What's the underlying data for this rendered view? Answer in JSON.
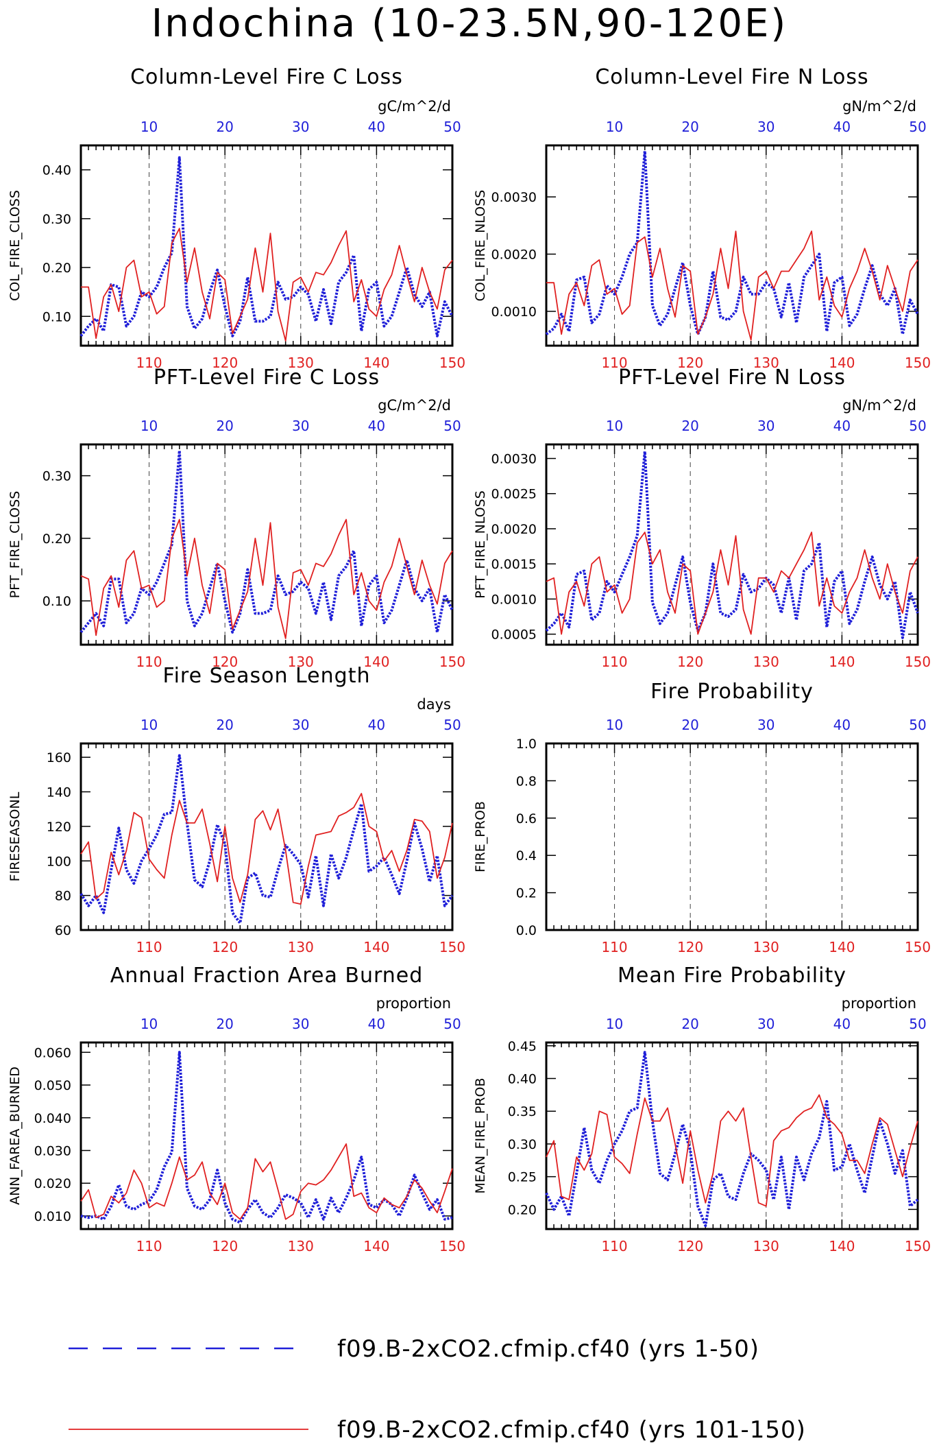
{
  "figure": {
    "title": "Indochina (10-23.5N,90-120E)"
  },
  "legend": {
    "entries": [
      {
        "label": "f09.B-2xCO2.cfmip.cf40 (yrs 1-50)",
        "color": "#1f1fd8",
        "style": "dashed"
      },
      {
        "label": "f09.B-2xCO2.cfmip.cf40 (yrs 101-150)",
        "color": "#e02020",
        "style": "solid"
      }
    ]
  },
  "colors": {
    "blue": "#1f1fd8",
    "red": "#e02020",
    "axis": "#000000"
  },
  "chart_data": [
    {
      "type": "line",
      "title": "Column-Level Fire C Loss",
      "units": "gC/m^2/d",
      "ylabel": "COL_FIRE_CLOSS",
      "ylim": [
        0.04,
        0.45
      ],
      "yticks": [
        "0.10",
        "0.20",
        "0.30",
        "0.40"
      ],
      "top_xticks": [
        "10",
        "20",
        "30",
        "40",
        "50"
      ],
      "bottom_xticks": [
        "110",
        "120",
        "130",
        "140",
        "150"
      ],
      "series": [
        {
          "name": "f09.B-2xCO2.cfmip.cf40 (yrs 1-50)",
          "x_start": 1,
          "values": [
            0.06,
            0.08,
            0.095,
            0.07,
            0.165,
            0.16,
            0.08,
            0.1,
            0.15,
            0.14,
            0.16,
            0.2,
            0.23,
            0.425,
            0.12,
            0.075,
            0.095,
            0.15,
            0.195,
            0.12,
            0.06,
            0.09,
            0.18,
            0.09,
            0.09,
            0.1,
            0.17,
            0.135,
            0.14,
            0.16,
            0.145,
            0.09,
            0.155,
            0.085,
            0.17,
            0.19,
            0.225,
            0.07,
            0.155,
            0.17,
            0.08,
            0.1,
            0.15,
            0.2,
            0.145,
            0.12,
            0.15,
            0.06,
            0.13,
            0.1
          ]
        },
        {
          "name": "f09.B-2xCO2.cfmip.cf40 (yrs 101-150)",
          "x_start": 101,
          "values": [
            0.16,
            0.16,
            0.055,
            0.14,
            0.165,
            0.11,
            0.2,
            0.215,
            0.14,
            0.15,
            0.105,
            0.12,
            0.25,
            0.28,
            0.17,
            0.24,
            0.15,
            0.095,
            0.19,
            0.175,
            0.065,
            0.1,
            0.135,
            0.24,
            0.15,
            0.27,
            0.11,
            0.05,
            0.17,
            0.18,
            0.15,
            0.19,
            0.185,
            0.21,
            0.245,
            0.275,
            0.13,
            0.175,
            0.115,
            0.1,
            0.155,
            0.185,
            0.245,
            0.185,
            0.13,
            0.2,
            0.15,
            0.115,
            0.195,
            0.215
          ]
        }
      ]
    },
    {
      "type": "line",
      "title": "Column-Level Fire N Loss",
      "units": "gN/m^2/d",
      "ylabel": "COL_FIRE_NLOSS",
      "ylim": [
        0.0004,
        0.0039
      ],
      "yticks": [
        "0.0010",
        "0.0020",
        "0.0030"
      ],
      "top_xticks": [
        "10",
        "20",
        "30",
        "40",
        "50"
      ],
      "bottom_xticks": [
        "110",
        "120",
        "130",
        "140",
        "150"
      ],
      "series": [
        {
          "name": "f09.B-2xCO2.cfmip.cf40 (yrs 1-50)",
          "x_start": 1,
          "values": [
            0.0006,
            0.0007,
            0.00095,
            0.00065,
            0.00155,
            0.0016,
            0.0008,
            0.00095,
            0.00145,
            0.0013,
            0.0016,
            0.002,
            0.0022,
            0.0038,
            0.0011,
            0.00075,
            0.00095,
            0.0014,
            0.00185,
            0.0011,
            0.0006,
            0.0009,
            0.0017,
            0.0009,
            0.00085,
            0.001,
            0.0016,
            0.0013,
            0.0013,
            0.0015,
            0.0014,
            0.0009,
            0.0015,
            0.0008,
            0.0016,
            0.0018,
            0.002,
            0.00065,
            0.0015,
            0.0016,
            0.00075,
            0.00095,
            0.0014,
            0.0018,
            0.0013,
            0.0011,
            0.0014,
            0.0006,
            0.0012,
            0.00095
          ]
        },
        {
          "name": "f09.B-2xCO2.cfmip.cf40 (yrs 101-150)",
          "x_start": 101,
          "values": [
            0.0015,
            0.0015,
            0.0006,
            0.0013,
            0.0015,
            0.0011,
            0.0018,
            0.0019,
            0.0013,
            0.0014,
            0.00095,
            0.0011,
            0.0022,
            0.0023,
            0.0016,
            0.0021,
            0.0014,
            0.0009,
            0.0018,
            0.0017,
            0.0006,
            0.0009,
            0.0013,
            0.0021,
            0.0014,
            0.0024,
            0.001,
            0.0005,
            0.0016,
            0.0017,
            0.0014,
            0.0017,
            0.0017,
            0.0019,
            0.0021,
            0.0024,
            0.0012,
            0.0016,
            0.0011,
            0.0009,
            0.0014,
            0.0017,
            0.0021,
            0.0017,
            0.0012,
            0.0018,
            0.0014,
            0.001,
            0.0017,
            0.0019
          ]
        }
      ]
    },
    {
      "type": "line",
      "title": "PFT-Level Fire C Loss",
      "units": "gC/m^2/d",
      "ylabel": "PFT_FIRE_CLOSS",
      "ylim": [
        0.03,
        0.35
      ],
      "yticks": [
        "0.10",
        "0.20",
        "0.30"
      ],
      "top_xticks": [
        "10",
        "20",
        "30",
        "40",
        "50"
      ],
      "bottom_xticks": [
        "110",
        "120",
        "130",
        "140",
        "150"
      ],
      "series": [
        {
          "name": "f09.B-2xCO2.cfmip.cf40 (yrs 1-50)",
          "x_start": 1,
          "values": [
            0.05,
            0.065,
            0.08,
            0.06,
            0.135,
            0.135,
            0.065,
            0.08,
            0.12,
            0.11,
            0.13,
            0.16,
            0.19,
            0.34,
            0.1,
            0.06,
            0.08,
            0.12,
            0.16,
            0.1,
            0.05,
            0.08,
            0.15,
            0.08,
            0.08,
            0.085,
            0.14,
            0.11,
            0.115,
            0.13,
            0.12,
            0.08,
            0.13,
            0.07,
            0.14,
            0.155,
            0.18,
            0.06,
            0.125,
            0.14,
            0.065,
            0.085,
            0.125,
            0.165,
            0.12,
            0.1,
            0.12,
            0.05,
            0.11,
            0.085
          ]
        },
        {
          "name": "f09.B-2xCO2.cfmip.cf40 (yrs 101-150)",
          "x_start": 101,
          "values": [
            0.14,
            0.135,
            0.045,
            0.12,
            0.14,
            0.09,
            0.165,
            0.18,
            0.12,
            0.125,
            0.09,
            0.1,
            0.2,
            0.23,
            0.14,
            0.2,
            0.125,
            0.08,
            0.16,
            0.15,
            0.055,
            0.085,
            0.115,
            0.2,
            0.125,
            0.225,
            0.09,
            0.04,
            0.145,
            0.15,
            0.125,
            0.16,
            0.155,
            0.175,
            0.205,
            0.23,
            0.11,
            0.145,
            0.1,
            0.085,
            0.13,
            0.155,
            0.2,
            0.155,
            0.11,
            0.165,
            0.125,
            0.095,
            0.16,
            0.18
          ]
        }
      ]
    },
    {
      "type": "line",
      "title": "PFT-Level Fire N Loss",
      "units": "gN/m^2/d",
      "ylabel": "PFT_FIRE_NLOSS",
      "ylim": [
        0.00035,
        0.0032
      ],
      "yticks": [
        "0.0005",
        "0.0010",
        "0.0015",
        "0.0020",
        "0.0025",
        "0.0030"
      ],
      "top_xticks": [
        "10",
        "20",
        "30",
        "40",
        "50"
      ],
      "bottom_xticks": [
        "110",
        "120",
        "130",
        "140",
        "150"
      ],
      "series": [
        {
          "name": "f09.B-2xCO2.cfmip.cf40 (yrs 1-50)",
          "x_start": 1,
          "values": [
            0.00055,
            0.00065,
            0.0008,
            0.0006,
            0.00135,
            0.0014,
            0.0007,
            0.0008,
            0.00125,
            0.0011,
            0.00135,
            0.0016,
            0.0019,
            0.0031,
            0.00095,
            0.00065,
            0.0008,
            0.0012,
            0.0016,
            0.00095,
            0.00055,
            0.0008,
            0.0015,
            0.0008,
            0.00075,
            0.00085,
            0.00135,
            0.0011,
            0.00115,
            0.0013,
            0.0012,
            0.0008,
            0.0013,
            0.0007,
            0.0014,
            0.0015,
            0.0018,
            0.0006,
            0.00125,
            0.0014,
            0.00065,
            0.00085,
            0.00125,
            0.0016,
            0.0012,
            0.001,
            0.00125,
            0.00045,
            0.0011,
            0.0008
          ]
        },
        {
          "name": "f09.B-2xCO2.cfmip.cf40 (yrs 101-150)",
          "x_start": 101,
          "values": [
            0.00125,
            0.0013,
            0.0005,
            0.0011,
            0.00125,
            0.0009,
            0.0015,
            0.0016,
            0.0011,
            0.0012,
            0.0008,
            0.001,
            0.0018,
            0.00195,
            0.0015,
            0.0017,
            0.0011,
            0.0008,
            0.0015,
            0.0014,
            0.0005,
            0.0008,
            0.0011,
            0.0017,
            0.0012,
            0.0019,
            0.00085,
            0.0005,
            0.0013,
            0.0013,
            0.0011,
            0.0014,
            0.0013,
            0.0015,
            0.0017,
            0.00195,
            0.0009,
            0.0013,
            0.0009,
            0.0008,
            0.0011,
            0.0013,
            0.0017,
            0.0013,
            0.001,
            0.0015,
            0.0011,
            0.0008,
            0.0014,
            0.0016
          ]
        }
      ]
    },
    {
      "type": "line",
      "title": "Fire Season Length",
      "units": "days",
      "ylabel": "FIRESEASONL",
      "ylim": [
        60,
        168
      ],
      "yticks": [
        "60",
        "80",
        "100",
        "120",
        "140",
        "160"
      ],
      "top_xticks": [
        "10",
        "20",
        "30",
        "40",
        "50"
      ],
      "bottom_xticks": [
        "110",
        "120",
        "130",
        "140",
        "150"
      ],
      "series": [
        {
          "name": "f09.B-2xCO2.cfmip.cf40 (yrs 1-50)",
          "x_start": 1,
          "values": [
            81,
            74,
            80,
            70,
            95,
            119,
            95,
            87,
            100,
            107,
            115,
            127,
            128,
            161,
            122,
            89,
            85,
            100,
            121,
            110,
            70,
            64,
            90,
            93,
            80,
            79,
            95,
            109,
            104,
            98,
            79,
            103,
            74,
            104,
            90,
            102,
            118,
            133,
            94,
            97,
            102,
            92,
            81,
            100,
            122,
            107,
            88,
            103,
            74,
            80
          ]
        },
        {
          "name": "f09.B-2xCO2.cfmip.cf40 (yrs 101-150)",
          "x_start": 101,
          "values": [
            104,
            111,
            78,
            82,
            105,
            92,
            106,
            128,
            125,
            101,
            95,
            90,
            115,
            135,
            122,
            122,
            130,
            110,
            88,
            120,
            90,
            76,
            92,
            124,
            129,
            118,
            130,
            106,
            76,
            75,
            97,
            115,
            116,
            117,
            126,
            128,
            131,
            139,
            120,
            117,
            100,
            106,
            94,
            106,
            124,
            123,
            117,
            90,
            102,
            122
          ]
        }
      ]
    },
    {
      "type": "line",
      "title": "Fire Probability",
      "units": "",
      "ylabel": "FIRE_PROB",
      "ylim": [
        0,
        1
      ],
      "yticks": [
        "0.0",
        "0.2",
        "0.4",
        "0.6",
        "0.8",
        "1.0"
      ],
      "top_xticks": [
        "10",
        "20",
        "30",
        "40",
        "50"
      ],
      "bottom_xticks": [
        "110",
        "120",
        "130",
        "140",
        "150"
      ],
      "series": []
    },
    {
      "type": "line",
      "title": "Annual Fraction Area Burned",
      "units": "proportion",
      "ylabel": "ANN_FAREA_BURNED",
      "ylim": [
        0.006,
        0.063
      ],
      "yticks": [
        "0.010",
        "0.020",
        "0.030",
        "0.040",
        "0.050",
        "0.060"
      ],
      "top_xticks": [
        "10",
        "20",
        "30",
        "40",
        "50"
      ],
      "bottom_xticks": [
        "110",
        "120",
        "130",
        "140",
        "150"
      ],
      "series": [
        {
          "name": "f09.B-2xCO2.cfmip.cf40 (yrs 1-50)",
          "x_start": 1,
          "values": [
            0.01,
            0.0095,
            0.01,
            0.009,
            0.013,
            0.0195,
            0.013,
            0.012,
            0.0135,
            0.0145,
            0.018,
            0.025,
            0.0295,
            0.06,
            0.0185,
            0.013,
            0.012,
            0.015,
            0.024,
            0.014,
            0.009,
            0.008,
            0.012,
            0.015,
            0.011,
            0.0095,
            0.0125,
            0.0165,
            0.0155,
            0.014,
            0.0095,
            0.015,
            0.009,
            0.0155,
            0.011,
            0.0155,
            0.021,
            0.028,
            0.0135,
            0.0125,
            0.015,
            0.0135,
            0.01,
            0.0155,
            0.0225,
            0.017,
            0.012,
            0.015,
            0.009,
            0.0095
          ]
        },
        {
          "name": "f09.B-2xCO2.cfmip.cf40 (yrs 101-150)",
          "x_start": 101,
          "values": [
            0.0145,
            0.018,
            0.0095,
            0.0105,
            0.016,
            0.014,
            0.017,
            0.024,
            0.02,
            0.0125,
            0.014,
            0.013,
            0.02,
            0.028,
            0.021,
            0.0225,
            0.0265,
            0.017,
            0.0135,
            0.02,
            0.011,
            0.009,
            0.0125,
            0.0275,
            0.0235,
            0.0265,
            0.018,
            0.009,
            0.0105,
            0.0175,
            0.02,
            0.0195,
            0.021,
            0.024,
            0.028,
            0.032,
            0.016,
            0.017,
            0.0125,
            0.011,
            0.0155,
            0.0135,
            0.0125,
            0.016,
            0.021,
            0.0185,
            0.0145,
            0.011,
            0.0175,
            0.0245
          ]
        }
      ]
    },
    {
      "type": "line",
      "title": "Mean Fire Probability",
      "units": "proportion",
      "ylabel": "MEAN_FIRE_PROB",
      "ylim": [
        0.17,
        0.455
      ],
      "yticks": [
        "0.20",
        "0.25",
        "0.30",
        "0.35",
        "0.40",
        "0.45"
      ],
      "top_xticks": [
        "10",
        "20",
        "30",
        "40",
        "50"
      ],
      "bottom_xticks": [
        "110",
        "120",
        "130",
        "140",
        "150"
      ],
      "series": [
        {
          "name": "f09.B-2xCO2.cfmip.cf40 (yrs 1-50)",
          "x_start": 1,
          "values": [
            0.225,
            0.2,
            0.22,
            0.19,
            0.255,
            0.325,
            0.26,
            0.24,
            0.275,
            0.3,
            0.32,
            0.35,
            0.355,
            0.44,
            0.335,
            0.255,
            0.245,
            0.285,
            0.33,
            0.29,
            0.205,
            0.175,
            0.245,
            0.255,
            0.22,
            0.215,
            0.255,
            0.285,
            0.275,
            0.26,
            0.215,
            0.28,
            0.2,
            0.28,
            0.245,
            0.285,
            0.31,
            0.365,
            0.26,
            0.265,
            0.3,
            0.26,
            0.225,
            0.28,
            0.335,
            0.3,
            0.255,
            0.29,
            0.205,
            0.215
          ]
        },
        {
          "name": "f09.B-2xCO2.cfmip.cf40 (yrs 101-150)",
          "x_start": 101,
          "values": [
            0.28,
            0.305,
            0.22,
            0.215,
            0.28,
            0.26,
            0.285,
            0.35,
            0.345,
            0.28,
            0.27,
            0.255,
            0.315,
            0.37,
            0.335,
            0.335,
            0.355,
            0.3,
            0.24,
            0.32,
            0.26,
            0.21,
            0.255,
            0.335,
            0.35,
            0.335,
            0.355,
            0.28,
            0.21,
            0.205,
            0.305,
            0.32,
            0.325,
            0.34,
            0.35,
            0.355,
            0.375,
            0.34,
            0.33,
            0.315,
            0.275,
            0.275,
            0.255,
            0.3,
            0.34,
            0.33,
            0.29,
            0.25,
            0.295,
            0.335
          ]
        }
      ]
    }
  ]
}
